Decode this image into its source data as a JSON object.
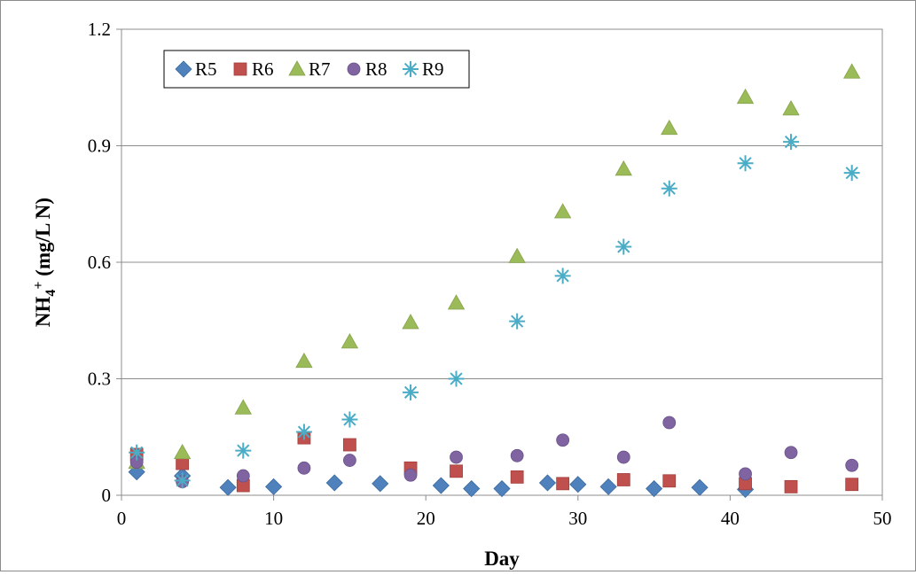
{
  "chart_data": {
    "type": "scatter",
    "title": "",
    "xlabel": "Day",
    "ylabel": {
      "prefix": "NH",
      "sub": "4",
      "sup": "+",
      "suffix": " (mg/L N)"
    },
    "xlim": [
      0,
      50
    ],
    "ylim": [
      0,
      1.2
    ],
    "x_ticks": [
      "0",
      "10",
      "20",
      "30",
      "40",
      "50"
    ],
    "y_ticks": [
      "0",
      "0.3",
      "0.6",
      "0.9",
      "1.2"
    ],
    "grid": "horizontal",
    "legend_position": "top-left",
    "series": [
      {
        "name": "R5",
        "marker": "diamond",
        "color": "#4F81BD",
        "points": [
          [
            1,
            0.06
          ],
          [
            4,
            0.05
          ],
          [
            7,
            0.02
          ],
          [
            10,
            0.022
          ],
          [
            14,
            0.032
          ],
          [
            17,
            0.03
          ],
          [
            21,
            0.025
          ],
          [
            23,
            0.017
          ],
          [
            25,
            0.017
          ],
          [
            28,
            0.032
          ],
          [
            30,
            0.028
          ],
          [
            32,
            0.022
          ],
          [
            35,
            0.017
          ],
          [
            38,
            0.02
          ],
          [
            41,
            0.015
          ]
        ]
      },
      {
        "name": "R6",
        "marker": "square",
        "color": "#C0504D",
        "points": [
          [
            1,
            0.105
          ],
          [
            4,
            0.082
          ],
          [
            8,
            0.025
          ],
          [
            12,
            0.148
          ],
          [
            15,
            0.13
          ],
          [
            19,
            0.07
          ],
          [
            22,
            0.062
          ],
          [
            26,
            0.047
          ],
          [
            29,
            0.03
          ],
          [
            33,
            0.04
          ],
          [
            36,
            0.037
          ],
          [
            41,
            0.03
          ],
          [
            44,
            0.022
          ],
          [
            48,
            0.028
          ]
        ]
      },
      {
        "name": "R7",
        "marker": "triangle",
        "color": "#9BBB59",
        "points": [
          [
            1,
            0.085
          ],
          [
            4,
            0.11
          ],
          [
            8,
            0.225
          ],
          [
            12,
            0.345
          ],
          [
            15,
            0.395
          ],
          [
            19,
            0.445
          ],
          [
            22,
            0.495
          ],
          [
            26,
            0.615
          ],
          [
            29,
            0.73
          ],
          [
            33,
            0.84
          ],
          [
            36,
            0.945
          ],
          [
            41,
            1.025
          ],
          [
            44,
            0.995
          ],
          [
            48,
            1.09
          ]
        ]
      },
      {
        "name": "R8",
        "marker": "circle",
        "color": "#8064A2",
        "points": [
          [
            1,
            0.085
          ],
          [
            4,
            0.035
          ],
          [
            8,
            0.05
          ],
          [
            12,
            0.07
          ],
          [
            15,
            0.09
          ],
          [
            19,
            0.052
          ],
          [
            22,
            0.098
          ],
          [
            26,
            0.102
          ],
          [
            29,
            0.142
          ],
          [
            33,
            0.098
          ],
          [
            36,
            0.187
          ],
          [
            41,
            0.055
          ],
          [
            44,
            0.11
          ],
          [
            48,
            0.077
          ]
        ]
      },
      {
        "name": "R9",
        "marker": "asterisk",
        "color": "#4BACC6",
        "points": [
          [
            1,
            0.11
          ],
          [
            4,
            0.038
          ],
          [
            8,
            0.115
          ],
          [
            12,
            0.163
          ],
          [
            15,
            0.195
          ],
          [
            19,
            0.265
          ],
          [
            22,
            0.3
          ],
          [
            26,
            0.448
          ],
          [
            29,
            0.565
          ],
          [
            33,
            0.64
          ],
          [
            36,
            0.79
          ],
          [
            41,
            0.855
          ],
          [
            44,
            0.91
          ],
          [
            48,
            0.83
          ]
        ]
      }
    ]
  }
}
